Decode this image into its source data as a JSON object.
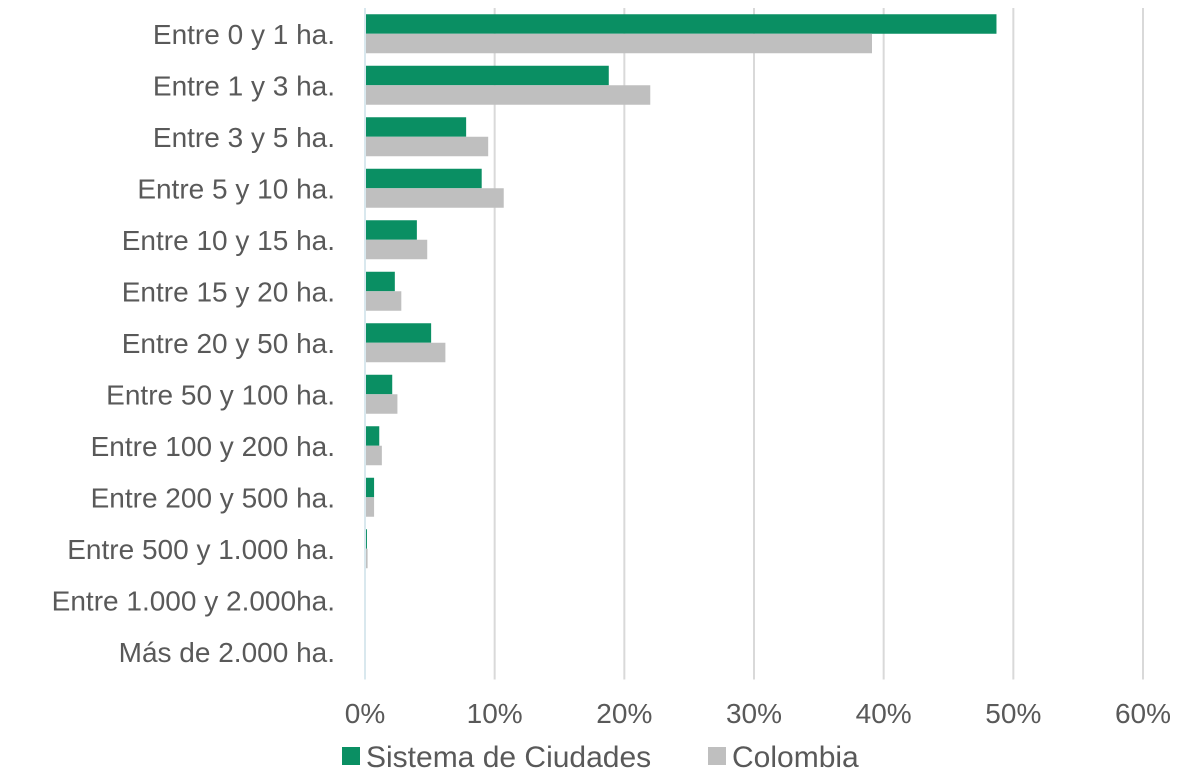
{
  "chart_data": {
    "type": "bar",
    "orientation": "horizontal",
    "categories": [
      "Entre 0 y 1 ha.",
      "Entre 1 y 3 ha.",
      "Entre 3 y 5 ha.",
      "Entre 5 y 10 ha.",
      "Entre 10 y 15 ha.",
      "Entre 15 y 20 ha.",
      "Entre 20 y 50 ha.",
      "Entre 50 y 100 ha.",
      "Entre 100 y 200 ha.",
      "Entre 200 y 500 ha.",
      "Entre 500 y 1.000 ha.",
      "Entre 1.000 y 2.000ha.",
      "Más de 2.000 ha."
    ],
    "series": [
      {
        "name": "Sistema de Ciudades",
        "color": "#0a8f63",
        "values": [
          48.7,
          18.8,
          7.8,
          9.0,
          4.0,
          2.3,
          5.1,
          2.1,
          1.1,
          0.7,
          0.15,
          0.05,
          0.03
        ]
      },
      {
        "name": "Colombia",
        "color": "#bfbfbf",
        "values": [
          39.1,
          22.0,
          9.5,
          10.7,
          4.8,
          2.8,
          6.2,
          2.5,
          1.3,
          0.7,
          0.2,
          0.05,
          0.03
        ]
      }
    ],
    "xlim": [
      0,
      60
    ],
    "xticks": [
      0,
      10,
      20,
      30,
      40,
      50,
      60
    ],
    "tick_format": "{v}%",
    "grid": true,
    "legend_position": "bottom",
    "title": "",
    "xlabel": "",
    "ylabel": ""
  }
}
